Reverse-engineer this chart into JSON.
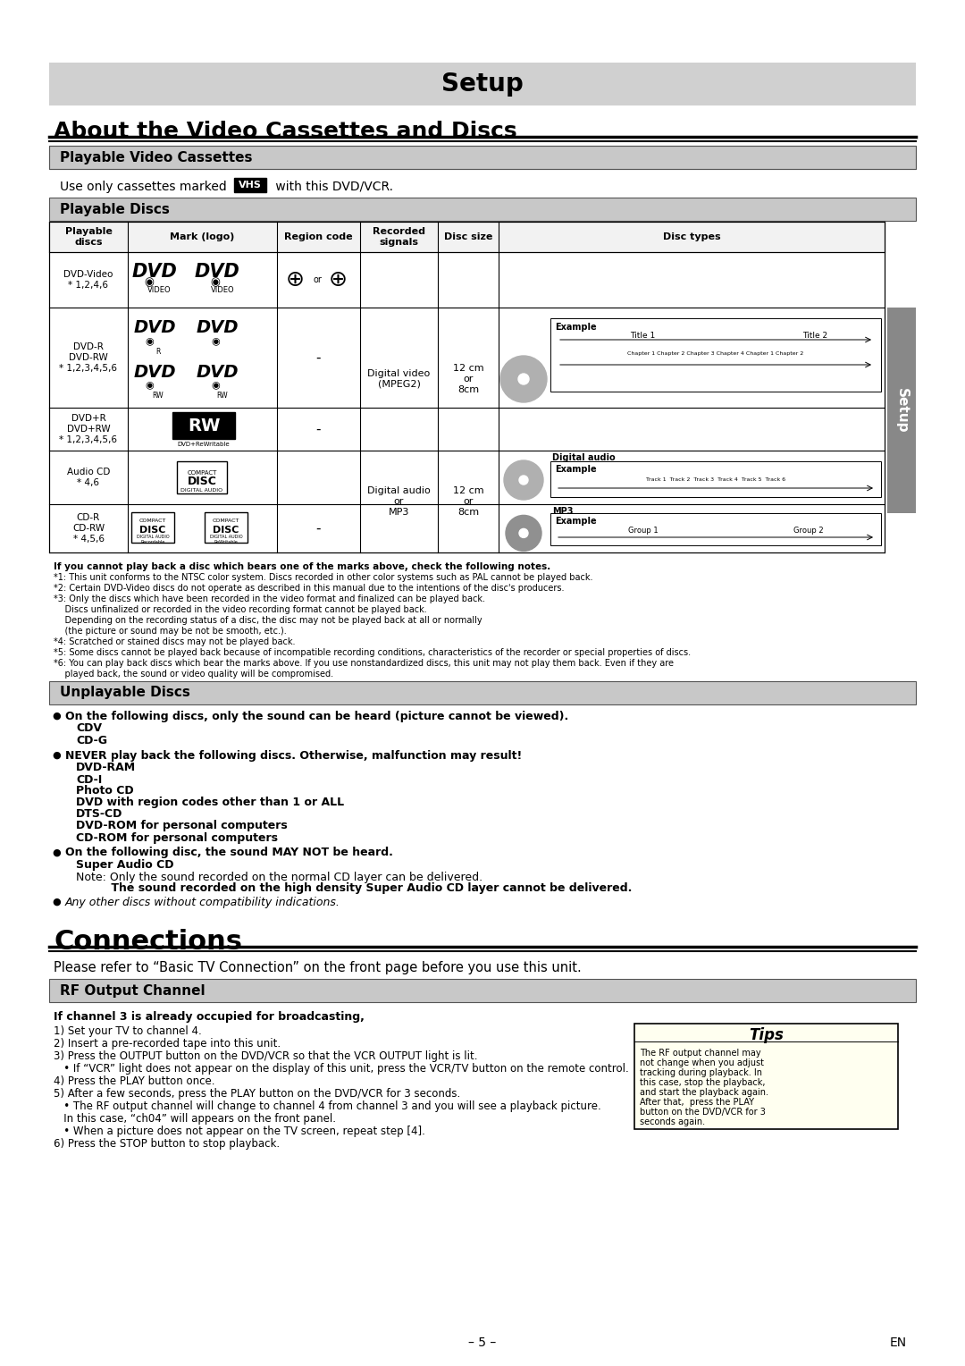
{
  "bg_color": "#ffffff",
  "title": "Setup",
  "subtitle": "About the Video Cassettes and Discs",
  "playable_vc_header": "Playable Video Cassettes",
  "playable_discs_header": "Playable Discs",
  "table_headers": [
    "Playable\ndiscs",
    "Mark (logo)",
    "Region code",
    "Recorded\nsignals",
    "Disc size",
    "Disc types"
  ],
  "disc_names": [
    "DVD-Video\n* 1,2,4,6",
    "DVD-R\nDVD-RW\n* 1,2,3,4,5,6",
    "DVD+R\nDVD+RW\n* 1,2,3,4,5,6",
    "Audio CD\n* 4,6",
    "CD-R\nCD-RW\n* 4,5,6"
  ],
  "region_codes": [
    "",
    "-",
    "-",
    "",
    "-"
  ],
  "footnote_bold": "If you cannot play back a disc which bears one of the marks above, check the following notes.",
  "footnotes": [
    "*1: This unit conforms to the NTSC color system. Discs recorded in other color systems such as PAL cannot be played back.",
    "*2: Certain DVD-Video discs do not operate as described in this manual due to the intentions of the disc's producers.",
    "*3: Only the discs which have been recorded in the video format and finalized can be played back.",
    "    Discs unfinalized or recorded in the video recording format cannot be played back.",
    "    Depending on the recording status of a disc, the disc may not be played back at all or normally",
    "    (the picture or sound may be not be smooth, etc.).",
    "*4: Scratched or stained discs may not be played back.",
    "*5: Some discs cannot be played back because of incompatible recording conditions, characteristics of the recorder or special properties of discs.",
    "*6: You can play back discs which bear the marks above. If you use nonstandardized discs, this unit may not play them back. Even if they are",
    "    played back, the sound or video quality will be compromised."
  ],
  "unplayable_header": "Unplayable Discs",
  "bullet1_header": "On the following discs, only the sound can be heard (picture cannot be viewed).",
  "bullet1_items": [
    "CDV",
    "CD-G"
  ],
  "bullet2_header": "NEVER play back the following discs. Otherwise, malfunction may result!",
  "bullet2_items": [
    "DVD-RAM",
    "CD-I",
    "Photo CD",
    "DVD with region codes other than 1 or ALL",
    "DTS-CD",
    "DVD-ROM for personal computers",
    "CD-ROM for personal computers"
  ],
  "bullet3_header": "On the following disc, the sound MAY NOT be heard.",
  "bullet3_items": [
    "Super Audio CD"
  ],
  "super_note1": "Note: Only the sound recorded on the normal CD layer can be delivered.",
  "super_note2": "         The sound recorded on the high density Super Audio CD layer cannot be delivered.",
  "bullet4_text": "Any other discs without compatibility indications.",
  "connections_title": "Connections",
  "connections_subtitle": "Please refer to “Basic TV Connection” on the front page before you use this unit.",
  "rf_header": "RF Output Channel",
  "rf_bold_line": "If channel 3 is already occupied for broadcasting,",
  "rf_lines": [
    "1) Set your TV to channel 4.",
    "2) Insert a pre-recorded tape into this unit.",
    "3) Press the OUTPUT button on the DVD/VCR so that the VCR OUTPUT light is lit.",
    "   • If “VCR” light does not appear on the display of this unit, press the VCR/TV button on the remote control.",
    "4) Press the PLAY button once.",
    "5) After a few seconds, press the PLAY button on the DVD/VCR for 3 seconds.",
    "   • The RF output channel will change to channel 4 from channel 3 and you will see a playback picture.",
    "   In this case, “ch04” will appears on the front panel.",
    "   • When a picture does not appear on the TV screen, repeat step [4].",
    "6) Press the STOP button to stop playback."
  ],
  "tips_header": "Tips",
  "tips_lines": [
    "The RF output channel may",
    "not change when you adjust",
    "tracking during playback. In",
    "this case, stop the playback,",
    "and start the playback again.",
    "After that,  press the PLAY",
    "button on the DVD/VCR for 3",
    "seconds again."
  ],
  "page_num": "– 5 –",
  "en_label": "EN",
  "sidebar_text": "Setup",
  "sidebar_color": "#888888"
}
